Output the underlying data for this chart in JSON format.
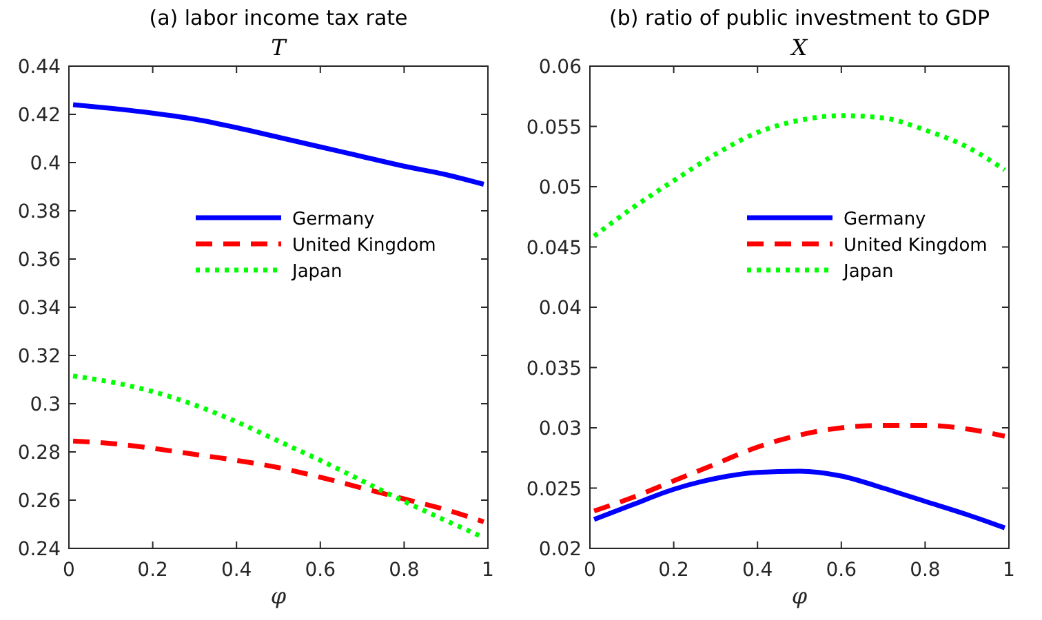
{
  "chart_data": [
    {
      "type": "line",
      "title": "(a) labor income tax rate",
      "subtitle": "T",
      "xlabel": "φ",
      "x": [
        0.01,
        0.1,
        0.2,
        0.3,
        0.4,
        0.5,
        0.6,
        0.7,
        0.8,
        0.9,
        0.99
      ],
      "xlim": [
        0,
        1
      ],
      "xticks": [
        0,
        0.2,
        0.4,
        0.6,
        0.8,
        1
      ],
      "ylim": [
        0.24,
        0.44
      ],
      "yticks": [
        0.24,
        0.26,
        0.28,
        0.3,
        0.32,
        0.34,
        0.36,
        0.38,
        0.4,
        0.42,
        0.44
      ],
      "legend": "center",
      "grid": false,
      "series": [
        {
          "name": "Germany",
          "color": "#0000ff",
          "line_style": "solid",
          "values": [
            0.424,
            0.4225,
            0.4205,
            0.418,
            0.4145,
            0.4105,
            0.4065,
            0.4025,
            0.3985,
            0.395,
            0.391
          ]
        },
        {
          "name": "United Kingdom",
          "color": "#ff0000",
          "line_style": "dashed",
          "values": [
            0.2845,
            0.2835,
            0.2815,
            0.279,
            0.2765,
            0.2735,
            0.2695,
            0.265,
            0.2605,
            0.256,
            0.251
          ]
        },
        {
          "name": "Japan",
          "color": "#00ff00",
          "line_style": "dotted",
          "values": [
            0.3115,
            0.309,
            0.305,
            0.2995,
            0.2925,
            0.2845,
            0.2765,
            0.268,
            0.2595,
            0.2515,
            0.2445
          ]
        }
      ]
    },
    {
      "type": "line",
      "title": "(b) ratio of public investment to GDP",
      "subtitle": "X",
      "xlabel": "φ",
      "x": [
        0.01,
        0.1,
        0.2,
        0.3,
        0.4,
        0.5,
        0.6,
        0.7,
        0.8,
        0.9,
        0.99
      ],
      "xlim": [
        0,
        1
      ],
      "xticks": [
        0,
        0.2,
        0.4,
        0.6,
        0.8,
        1
      ],
      "ylim": [
        0.02,
        0.06
      ],
      "yticks": [
        0.02,
        0.025,
        0.03,
        0.035,
        0.04,
        0.045,
        0.05,
        0.055,
        0.06
      ],
      "legend": "right",
      "grid": false,
      "series": [
        {
          "name": "Germany",
          "color": "#0000ff",
          "line_style": "solid",
          "values": [
            0.0224,
            0.0236,
            0.0249,
            0.0258,
            0.0263,
            0.0264,
            0.026,
            0.025,
            0.0239,
            0.0228,
            0.0217
          ]
        },
        {
          "name": "United Kingdom",
          "color": "#ff0000",
          "line_style": "dashed",
          "values": [
            0.0231,
            0.0242,
            0.0256,
            0.027,
            0.0284,
            0.0294,
            0.03,
            0.0302,
            0.0302,
            0.0299,
            0.0293
          ]
        },
        {
          "name": "Japan",
          "color": "#00ff00",
          "line_style": "dotted",
          "values": [
            0.0459,
            0.0482,
            0.0505,
            0.0527,
            0.0545,
            0.0555,
            0.0559,
            0.0557,
            0.0547,
            0.0533,
            0.0514
          ]
        }
      ]
    }
  ]
}
